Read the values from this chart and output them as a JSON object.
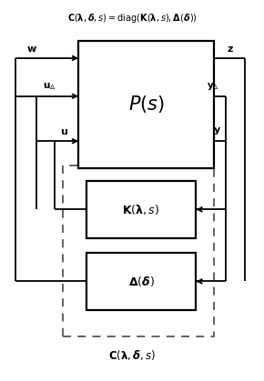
{
  "title_top": "$\\mathbf{C}(\\boldsymbol{\\lambda}, \\boldsymbol{\\delta}, s) = \\mathrm{diag}(\\mathbf{K}(\\boldsymbol{\\lambda}, s), \\boldsymbol{\\Delta}(\\boldsymbol{\\delta}))$",
  "title_bottom": "$\\mathbf{C}(\\boldsymbol{\\lambda}, \\boldsymbol{\\delta}, s)$",
  "P_label": "$P(s)$",
  "K_label": "$\\mathbf{K}(\\boldsymbol{\\lambda}, s)$",
  "Delta_label": "$\\boldsymbol{\\Delta}(\\boldsymbol{\\delta})$",
  "w_label": "$\\mathbf{w}$",
  "z_label": "$\\mathbf{z}$",
  "u_delta_label": "$\\mathbf{u}_{\\Delta}$",
  "y_delta_label": "$\\mathbf{y}_{\\Delta}$",
  "u_label": "$\\mathbf{u}$",
  "y_label": "$\\mathbf{y}$",
  "bg_color": "#ffffff"
}
